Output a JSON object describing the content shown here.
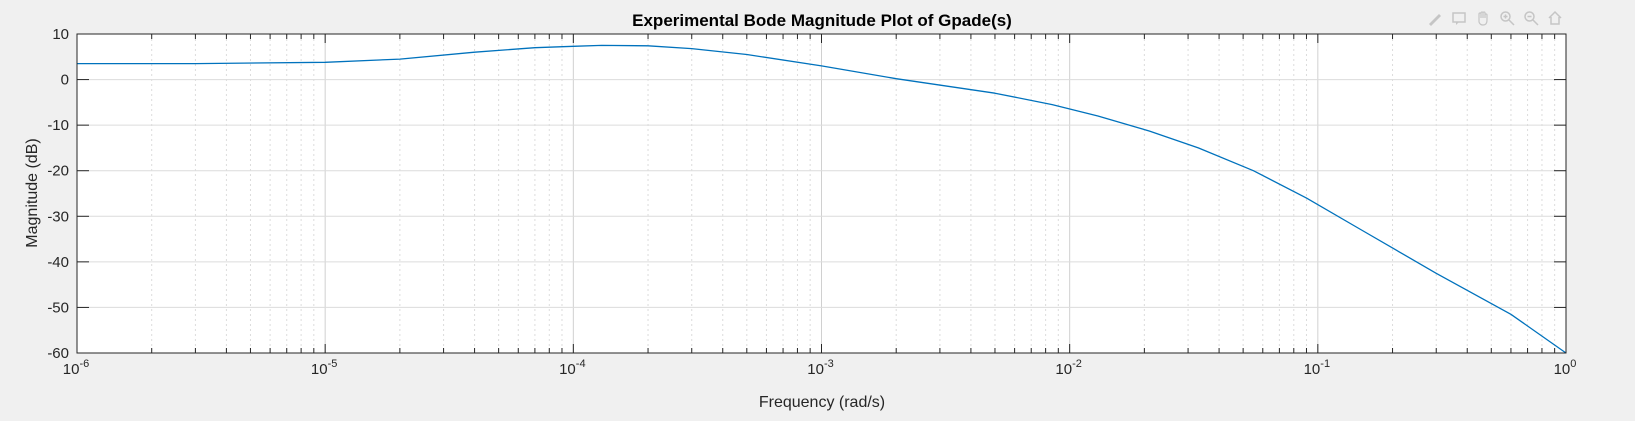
{
  "chart_data": {
    "type": "line",
    "title": "Experimental Bode Magnitude Plot of Gpade(s)",
    "xlabel": "Frequency (rad/s)",
    "ylabel": "Magnitude (dB)",
    "xscale": "log",
    "xlim": [
      1e-06,
      1
    ],
    "ylim": [
      -60,
      10
    ],
    "grid": true,
    "minor_grid": true,
    "x_ticks": [
      {
        "value": 1e-06,
        "base": "10",
        "exp": "-6"
      },
      {
        "value": 1e-05,
        "base": "10",
        "exp": "-5"
      },
      {
        "value": 0.0001,
        "base": "10",
        "exp": "-4"
      },
      {
        "value": 0.001,
        "base": "10",
        "exp": "-3"
      },
      {
        "value": 0.01,
        "base": "10",
        "exp": "-2"
      },
      {
        "value": 0.1,
        "base": "10",
        "exp": "-1"
      },
      {
        "value": 1,
        "base": "10",
        "exp": "0"
      }
    ],
    "y_ticks": [
      10,
      0,
      -10,
      -20,
      -30,
      -40,
      -50,
      -60
    ],
    "series": [
      {
        "color": "#0072bd",
        "x": [
          1e-06,
          3e-06,
          1e-05,
          2e-05,
          4e-05,
          7e-05,
          0.0001,
          0.00013,
          0.0002,
          0.0003,
          0.0005,
          0.001,
          0.002,
          0.005,
          0.0085,
          0.013,
          0.021,
          0.033,
          0.055,
          0.09,
          0.15,
          0.3,
          0.6,
          1
        ],
        "y": [
          3.5,
          3.5,
          3.8,
          4.5,
          6.0,
          7.0,
          7.3,
          7.5,
          7.4,
          6.8,
          5.5,
          3.0,
          0.2,
          -3.0,
          -5.5,
          -8.0,
          -11.3,
          -15.0,
          -20.0,
          -26.0,
          -33.0,
          -42.5,
          -51.5,
          -60.0
        ]
      }
    ]
  },
  "toolbar": {
    "icons": [
      "brush-icon",
      "data-tip-icon",
      "pan-icon",
      "zoom-in-icon",
      "zoom-out-icon",
      "home-icon"
    ]
  }
}
